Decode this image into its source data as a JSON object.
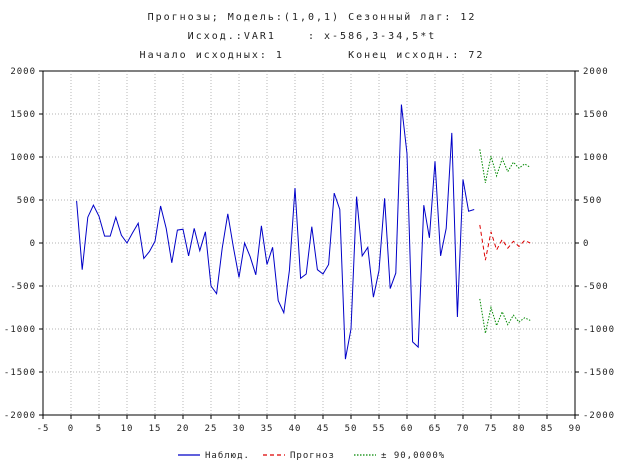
{
  "header": {
    "line1": "Прогнозы; Модель:(1,0,1) Сезонный лаг: 12",
    "line2": "Исход.:VAR1    : x-586,3-34,5*t",
    "line3": "Начало исходных: 1        Конец исходн.: 72"
  },
  "colors": {
    "observed": "#0000c8",
    "forecast": "#dd0000",
    "band": "#008800",
    "grid": "#9a9a9a",
    "axis": "#000000"
  },
  "chart_data": {
    "type": "line",
    "title": "Прогнозы; Модель:(1,0,1) Сезонный лаг: 12",
    "subtitle": "Исход.:VAR1    : x-586,3-34,5*t",
    "xlim": [
      -5,
      90
    ],
    "ylim": [
      -2000,
      2000
    ],
    "x_ticks": [
      -5,
      0,
      5,
      10,
      15,
      20,
      25,
      30,
      35,
      40,
      45,
      50,
      55,
      60,
      65,
      70,
      75,
      80,
      85,
      90
    ],
    "y_ticks": [
      -2000,
      -1500,
      -1000,
      -500,
      0,
      500,
      1000,
      1500,
      2000
    ],
    "grid": true,
    "legend_position": "bottom",
    "series": [
      {
        "name": "Наблюд.",
        "style": "solid",
        "x": [
          1,
          2,
          3,
          4,
          5,
          6,
          7,
          8,
          9,
          10,
          11,
          12,
          13,
          14,
          15,
          16,
          17,
          18,
          19,
          20,
          21,
          22,
          23,
          24,
          25,
          26,
          27,
          28,
          29,
          30,
          31,
          32,
          33,
          34,
          35,
          36,
          37,
          38,
          39,
          40,
          41,
          42,
          43,
          44,
          45,
          46,
          47,
          48,
          49,
          50,
          51,
          52,
          53,
          54,
          55,
          56,
          57,
          58,
          59,
          60,
          61,
          62,
          63,
          64,
          65,
          66,
          67,
          68,
          69,
          70,
          71,
          72
        ],
        "values": [
          490,
          -310,
          300,
          440,
          310,
          80,
          80,
          300,
          90,
          0,
          120,
          230,
          -180,
          -100,
          20,
          430,
          170,
          -230,
          150,
          160,
          -150,
          170,
          -90,
          130,
          -500,
          -590,
          -60,
          340,
          -50,
          -400,
          0,
          -160,
          -370,
          200,
          -250,
          -50,
          -670,
          -810,
          -320,
          640,
          -410,
          -360,
          190,
          -310,
          -360,
          -250,
          580,
          390,
          -1350,
          -1000,
          540,
          -150,
          -50,
          -630,
          -320,
          520,
          -530,
          -350,
          1610,
          1040,
          -1150,
          -1210,
          440,
          60,
          950,
          -150,
          170,
          1280,
          -860,
          740,
          370,
          390
        ]
      },
      {
        "name": "Прогноз",
        "style": "dashed",
        "x": [
          73,
          74,
          75,
          76,
          77,
          78,
          79,
          80,
          81,
          82
        ],
        "values": [
          210,
          -200,
          130,
          -80,
          40,
          -60,
          20,
          -40,
          30,
          0
        ]
      },
      {
        "name": "± 90,0000%",
        "style": "dotted",
        "x": [
          73,
          74,
          75,
          76,
          77,
          78,
          79,
          80,
          81,
          82
        ],
        "values": [
          1090,
          700,
          1010,
          780,
          980,
          830,
          940,
          870,
          920,
          880
        ]
      },
      {
        "name": "",
        "style": "dotted",
        "x": [
          73,
          74,
          75,
          76,
          77,
          78,
          79,
          80,
          81,
          82
        ],
        "values": [
          -650,
          -1050,
          -750,
          -960,
          -800,
          -950,
          -840,
          -920,
          -870,
          -900
        ]
      }
    ]
  }
}
